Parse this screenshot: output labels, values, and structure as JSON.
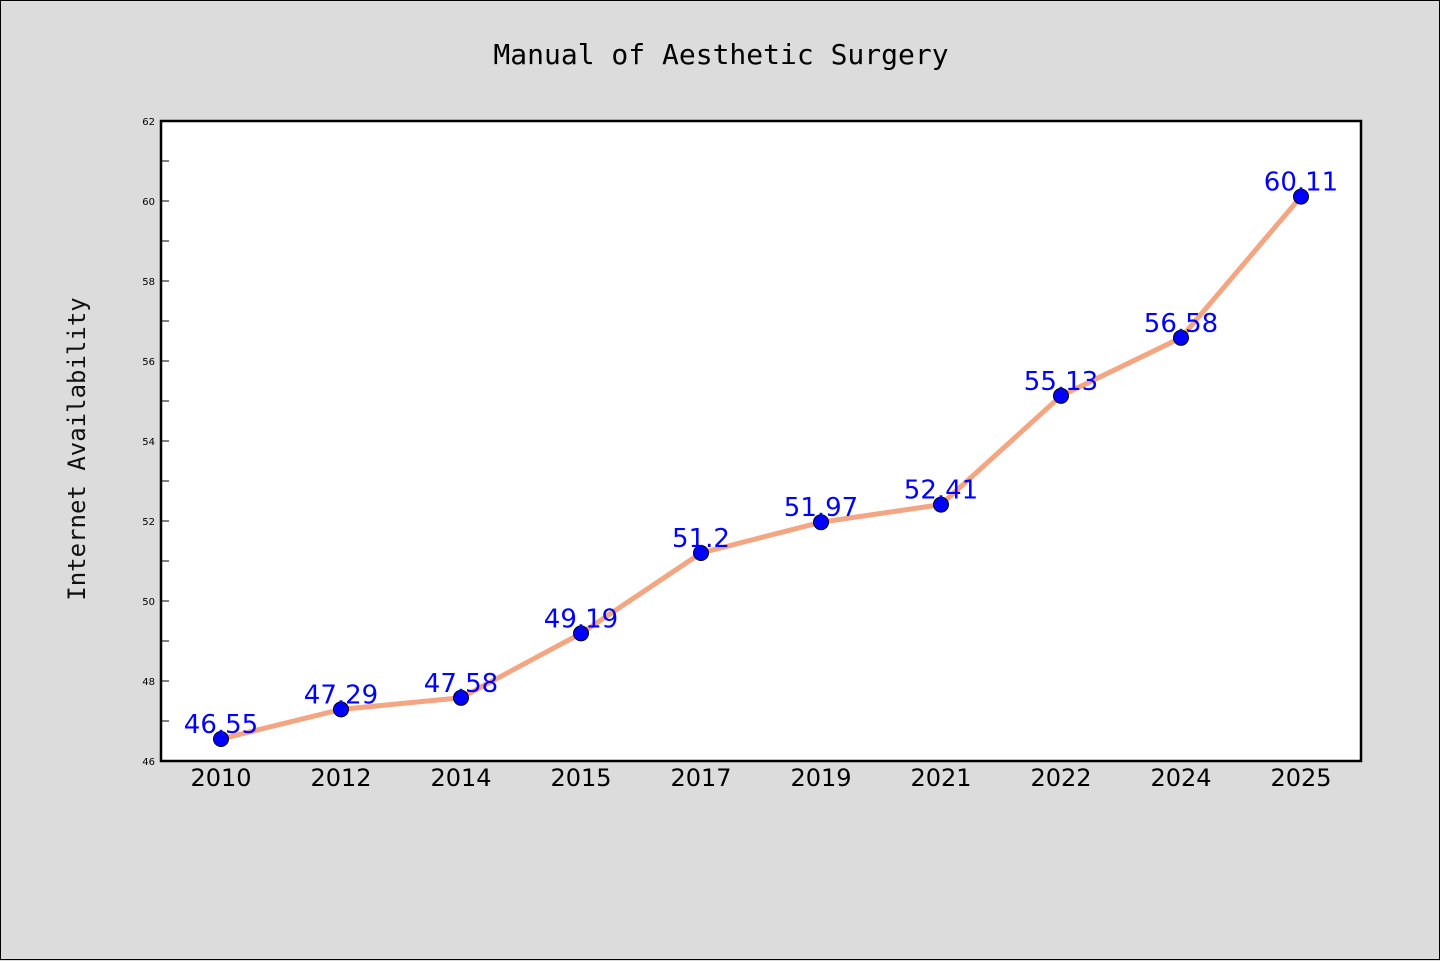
{
  "chart_data": {
    "type": "line",
    "title": "Manual of Aesthetic Surgery",
    "xlabel": "",
    "ylabel": "Internet Availability",
    "categories": [
      "2010",
      "2012",
      "2014",
      "2015",
      "2017",
      "2019",
      "2021",
      "2022",
      "2024",
      "2025"
    ],
    "series": [
      {
        "values": [
          46.55,
          47.29,
          47.58,
          49.19,
          51.2,
          51.97,
          52.41,
          55.13,
          56.58,
          60.11
        ],
        "data_labels": [
          "46.55",
          "47.29",
          "47.58",
          "49.19",
          "51.2",
          "51.97",
          "52.41",
          "55.13",
          "56.58",
          "60.11"
        ]
      }
    ],
    "ylim": [
      46,
      62
    ],
    "y_ticks": [
      "46",
      "48",
      "50",
      "52",
      "54",
      "56",
      "58",
      "60",
      "62"
    ],
    "grid": false,
    "legend": "none",
    "colors": {
      "line": "#f4a582",
      "marker": "#0000ff",
      "label": "#0000ff",
      "plot_background": "#ffffff",
      "figure_background": "#dcdcdc"
    }
  }
}
